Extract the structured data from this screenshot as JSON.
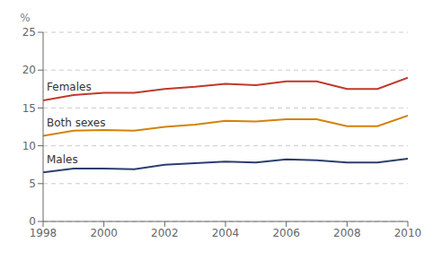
{
  "chart_data": {
    "type": "line",
    "x": [
      1998,
      1999,
      2000,
      2001,
      2002,
      2003,
      2004,
      2005,
      2006,
      2007,
      2008,
      2009,
      2010
    ],
    "xlim": [
      1998,
      2010
    ],
    "xticks": [
      1998,
      2000,
      2002,
      2004,
      2006,
      2008,
      2010
    ],
    "ylim": [
      0,
      25
    ],
    "yticks": [
      0,
      5,
      10,
      15,
      20,
      25
    ],
    "y_label": "%",
    "grid": true,
    "series": [
      {
        "name": "Females",
        "color": "#c0392b",
        "values": [
          16.0,
          16.7,
          17.0,
          17.0,
          17.5,
          17.8,
          18.2,
          18.0,
          18.5,
          18.5,
          17.5,
          17.5,
          19.0
        ]
      },
      {
        "name": "Both sexes",
        "color": "#d4820a",
        "values": [
          11.3,
          12.0,
          12.1,
          12.0,
          12.5,
          12.8,
          13.3,
          13.2,
          13.5,
          13.5,
          12.6,
          12.6,
          14.0
        ]
      },
      {
        "name": "Males",
        "color": "#2c3e6e",
        "values": [
          6.5,
          7.0,
          7.0,
          6.9,
          7.5,
          7.7,
          7.9,
          7.8,
          8.2,
          8.1,
          7.8,
          7.8,
          8.3
        ]
      }
    ]
  }
}
